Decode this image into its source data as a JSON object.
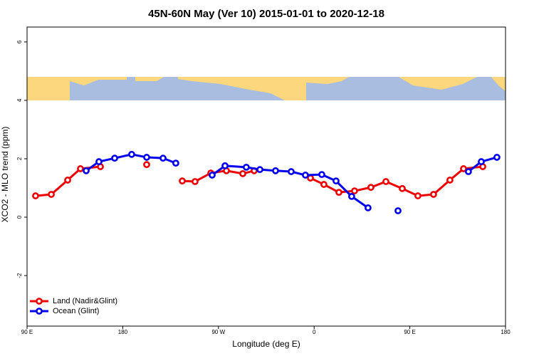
{
  "chart_data": {
    "type": "line",
    "title": "45N-60N May (Ver 10)   2015-01-01 to 2020-12-18",
    "xlabel": "Longitude (deg E)",
    "ylabel": "XCO2 - MLO trend (ppm)",
    "xlim": [
      90,
      540
    ],
    "ylim": [
      -3.73,
      6.51
    ],
    "xticks": [
      {
        "value": 90,
        "label": "90 E"
      },
      {
        "value": 180,
        "label": "180"
      },
      {
        "value": 270,
        "label": "90 W"
      },
      {
        "value": 360,
        "label": "0"
      },
      {
        "value": 450,
        "label": "90 E"
      },
      {
        "value": 540,
        "label": "180"
      }
    ],
    "yticks": [
      -2,
      0,
      2,
      4,
      6
    ],
    "legend": "bottom-left",
    "series": [
      {
        "name": "Land (Nadir&Glint)",
        "color": "#ee0000",
        "x": [
          98.0,
          112.8,
          128.2,
          140.2,
          159.0,
          null,
          202.5,
          null,
          236.0,
          248.0,
          262.8,
          277.5,
          292.9,
          303.6,
          null,
          356.5,
          369.2,
          383.3,
          398.0,
          413.4,
          427.5,
          442.9,
          457.6,
          472.3,
          487.7,
          500.5,
          518.6
        ],
        "values": [
          0.73,
          0.78,
          1.27,
          1.66,
          1.73,
          null,
          1.8,
          null,
          1.24,
          1.22,
          1.51,
          1.59,
          1.49,
          1.59,
          null,
          1.34,
          1.12,
          0.85,
          0.9,
          1.02,
          1.22,
          0.98,
          0.73,
          0.78,
          1.27,
          1.66,
          1.73
        ]
      },
      {
        "name": "Ocean (Glint)",
        "color": "#0000ee",
        "x": [
          145.6,
          157.6,
          172.4,
          188.4,
          202.5,
          217.9,
          229.9,
          null,
          264.1,
          276.2,
          296.2,
          309.0,
          323.7,
          338.4,
          351.8,
          367.2,
          380.6,
          395.3,
          410.7,
          null,
          438.9,
          null,
          505.1,
          517.2,
          531.9
        ],
        "values": [
          1.59,
          1.9,
          2.02,
          2.15,
          2.05,
          2.02,
          1.85,
          null,
          1.44,
          1.76,
          1.71,
          1.63,
          1.59,
          1.56,
          1.44,
          1.46,
          1.24,
          0.71,
          0.32,
          null,
          0.22,
          null,
          1.56,
          1.9,
          2.05
        ]
      }
    ]
  }
}
